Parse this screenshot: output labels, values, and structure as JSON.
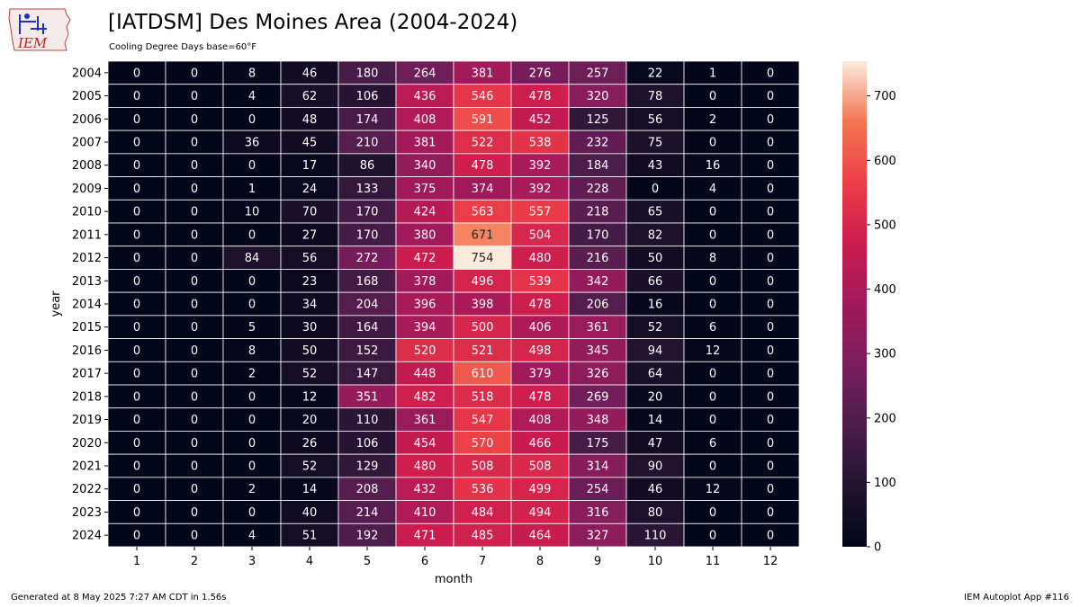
{
  "header": {
    "title": "[IATDSM] Des Moines Area (2004-2024)",
    "subtitle": "Cooling Degree Days base=60°F"
  },
  "logo": {
    "text": "IEM",
    "icon": "iem-iowa-logo"
  },
  "footer": {
    "generated": "Generated at 8 May 2025 7:27 AM CDT in 1.56s",
    "app": "IEM Autoplot App #116"
  },
  "chart_data": {
    "type": "heatmap",
    "colormap": "rocket",
    "xlabel": "month",
    "ylabel": "year",
    "x": [
      "1",
      "2",
      "3",
      "4",
      "5",
      "6",
      "7",
      "8",
      "9",
      "10",
      "11",
      "12"
    ],
    "y": [
      "2004",
      "2005",
      "2006",
      "2007",
      "2008",
      "2009",
      "2010",
      "2011",
      "2012",
      "2013",
      "2014",
      "2015",
      "2016",
      "2017",
      "2018",
      "2019",
      "2020",
      "2021",
      "2022",
      "2023",
      "2024"
    ],
    "values": [
      [
        0,
        0,
        8,
        46,
        180,
        264,
        381,
        276,
        257,
        22,
        1,
        0
      ],
      [
        0,
        0,
        4,
        62,
        106,
        436,
        546,
        478,
        320,
        78,
        0,
        0
      ],
      [
        0,
        0,
        0,
        48,
        174,
        408,
        591,
        452,
        125,
        56,
        2,
        0
      ],
      [
        0,
        0,
        36,
        45,
        210,
        381,
        522,
        538,
        232,
        75,
        0,
        0
      ],
      [
        0,
        0,
        0,
        17,
        86,
        340,
        478,
        392,
        184,
        43,
        16,
        0
      ],
      [
        0,
        0,
        1,
        24,
        133,
        375,
        374,
        392,
        228,
        0,
        4,
        0
      ],
      [
        0,
        0,
        10,
        70,
        170,
        424,
        563,
        557,
        218,
        65,
        0,
        0
      ],
      [
        0,
        0,
        0,
        27,
        170,
        380,
        671,
        504,
        170,
        82,
        0,
        0
      ],
      [
        0,
        0,
        84,
        56,
        272,
        472,
        754,
        480,
        216,
        50,
        8,
        0
      ],
      [
        0,
        0,
        0,
        23,
        168,
        378,
        496,
        539,
        342,
        66,
        0,
        0
      ],
      [
        0,
        0,
        0,
        34,
        204,
        396,
        398,
        478,
        206,
        16,
        0,
        0
      ],
      [
        0,
        0,
        5,
        30,
        164,
        394,
        500,
        406,
        361,
        52,
        6,
        0
      ],
      [
        0,
        0,
        8,
        50,
        152,
        520,
        521,
        498,
        345,
        94,
        12,
        0
      ],
      [
        0,
        0,
        2,
        52,
        147,
        448,
        610,
        379,
        326,
        64,
        0,
        0
      ],
      [
        0,
        0,
        0,
        12,
        351,
        482,
        518,
        478,
        269,
        20,
        0,
        0
      ],
      [
        0,
        0,
        0,
        20,
        110,
        361,
        547,
        408,
        348,
        14,
        0,
        0
      ],
      [
        0,
        0,
        0,
        26,
        106,
        454,
        570,
        466,
        175,
        47,
        6,
        0
      ],
      [
        0,
        0,
        0,
        52,
        129,
        480,
        508,
        508,
        314,
        90,
        0,
        0
      ],
      [
        0,
        0,
        2,
        14,
        208,
        432,
        536,
        499,
        254,
        46,
        12,
        0
      ],
      [
        0,
        0,
        0,
        40,
        214,
        410,
        484,
        494,
        316,
        80,
        0,
        0
      ],
      [
        0,
        0,
        4,
        51,
        192,
        471,
        485,
        464,
        327,
        110,
        0,
        0
      ]
    ],
    "colorbar": {
      "vmin": 0,
      "vmax": 754,
      "ticks": [
        0,
        100,
        200,
        300,
        400,
        500,
        600,
        700
      ]
    },
    "grid": true,
    "legend": "colorbar-right"
  }
}
